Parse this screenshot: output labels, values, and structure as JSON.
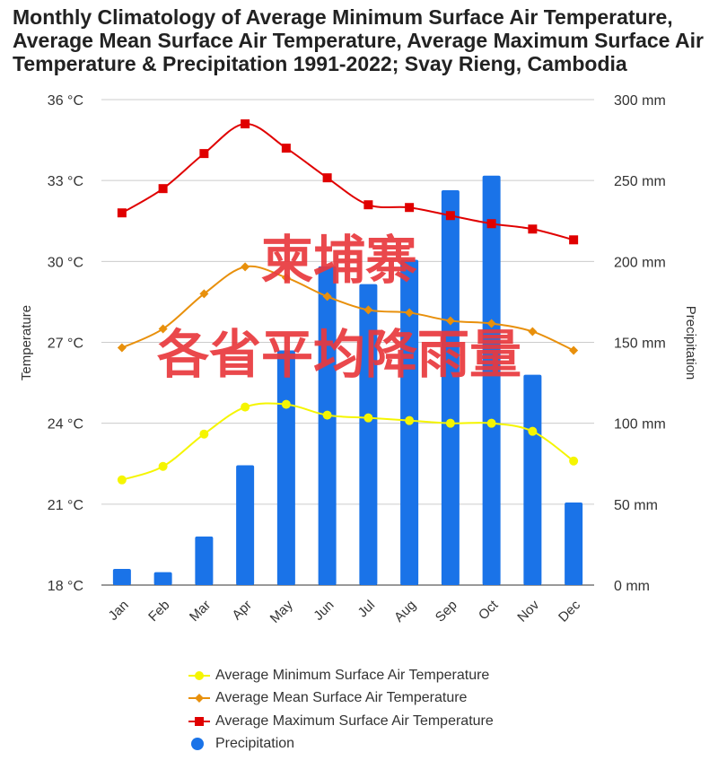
{
  "chart_data": {
    "type": "bar+line",
    "title": [
      "Monthly Climatology of Average Minimum Surface Air Temperature,",
      "Average Mean Surface Air Temperature, Average Maximum Surface Air",
      "Temperature & Precipitation 1991-2022; Svay Rieng, Cambodia"
    ],
    "categories": [
      "Jan",
      "Feb",
      "Mar",
      "Apr",
      "May",
      "Jun",
      "Jul",
      "Aug",
      "Sep",
      "Oct",
      "Nov",
      "Dec"
    ],
    "ylabel_left": "Temperature",
    "ylabel_right": "Precipitation",
    "ylim_left": [
      18,
      36
    ],
    "ylim_right": [
      0,
      300
    ],
    "left_ticks": [
      "18 °C",
      "21 °C",
      "24 °C",
      "27 °C",
      "30 °C",
      "33 °C",
      "36 °C"
    ],
    "right_ticks": [
      "0 mm",
      "50 mm",
      "100 mm",
      "150 mm",
      "200 mm",
      "250 mm",
      "300 mm"
    ],
    "grid": true,
    "legend_position": "bottom",
    "series": [
      {
        "name": "Precipitation",
        "type": "bar",
        "axis": "right",
        "color": "#1a73e8",
        "values": [
          10,
          8,
          30,
          74,
          145,
          197,
          186,
          201,
          244,
          253,
          130,
          51
        ]
      },
      {
        "name": "Average Minimum Surface Air Temperature",
        "type": "line",
        "axis": "left",
        "color": "#f5f500",
        "marker": "circle",
        "values": [
          21.9,
          22.4,
          23.6,
          24.6,
          24.7,
          24.3,
          24.2,
          24.1,
          24.0,
          24.0,
          23.7,
          22.6
        ]
      },
      {
        "name": "Average Mean Surface Air Temperature",
        "type": "line",
        "axis": "left",
        "color": "#e8900c",
        "marker": "diamond",
        "values": [
          26.8,
          27.5,
          28.8,
          29.8,
          29.4,
          28.7,
          28.2,
          28.1,
          27.8,
          27.7,
          27.4,
          26.7
        ]
      },
      {
        "name": "Average Maximum Surface Air Temperature",
        "type": "line",
        "axis": "left",
        "color": "#e00000",
        "marker": "square",
        "values": [
          31.8,
          32.7,
          34.0,
          35.1,
          34.2,
          33.1,
          32.1,
          32.0,
          31.7,
          31.4,
          31.2,
          30.8
        ]
      }
    ],
    "legend_order": [
      1,
      2,
      3,
      0
    ]
  },
  "watermark": [
    "柬埔寨",
    "各省平均降雨量"
  ]
}
